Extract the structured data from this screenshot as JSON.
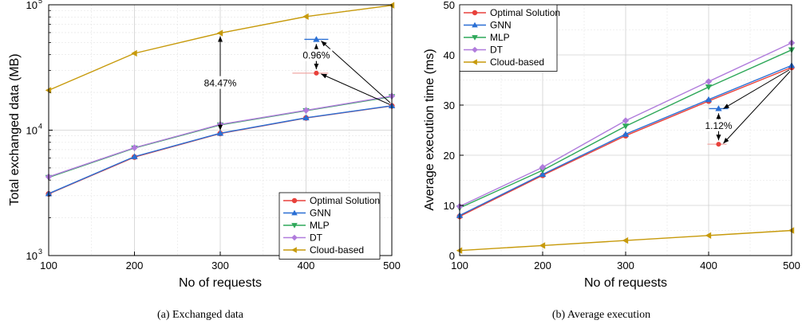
{
  "captions": {
    "a": "(a) Exchanged data",
    "b": "(b) Average execution"
  },
  "chart_data": [
    {
      "type": "line",
      "yscale": "log",
      "xlabel": "No of requests",
      "ylabel": "Total exchanged data (MB)",
      "x": [
        100,
        200,
        300,
        400,
        500
      ],
      "xlim": [
        100,
        500
      ],
      "ylim": [
        1000,
        100000
      ],
      "xticks": [
        "100",
        "200",
        "300",
        "400",
        "500"
      ],
      "ytick_values": [
        1000,
        10000,
        100000
      ],
      "yticks": [
        "10",
        "10",
        "10"
      ],
      "ytick_exponents": [
        "3",
        "4",
        "5"
      ],
      "grid": true,
      "legend_position": "bottom-right",
      "series": [
        {
          "name": "Optimal Solution",
          "color": "#e8413b",
          "marker": "circle",
          "values": [
            3100,
            6100,
            9400,
            12500,
            15600
          ]
        },
        {
          "name": "GNN",
          "color": "#2a6fd4",
          "marker": "triangle-up",
          "values": [
            3120,
            6150,
            9450,
            12550,
            15650
          ]
        },
        {
          "name": "MLP",
          "color": "#2fa85a",
          "marker": "triangle-down",
          "values": [
            4200,
            7200,
            11000,
            14300,
            18500
          ]
        },
        {
          "name": "DT",
          "color": "#b07cdc",
          "marker": "diamond",
          "values": [
            4250,
            7250,
            11100,
            14400,
            18700
          ]
        },
        {
          "name": "Cloud-based",
          "color": "#c79a0b",
          "marker": "triangle-left",
          "values": [
            20800,
            41000,
            59500,
            80500,
            99000
          ]
        }
      ],
      "annotations": [
        {
          "text": "84.47%"
        },
        {
          "text": "0.96%"
        }
      ]
    },
    {
      "type": "line",
      "xlabel": "No of requests",
      "ylabel": "Average execution time (ms)",
      "x": [
        100,
        200,
        300,
        400,
        500
      ],
      "xlim": [
        100,
        500
      ],
      "ylim": [
        0,
        50
      ],
      "xticks": [
        "100",
        "200",
        "300",
        "400",
        "500"
      ],
      "yticks": [
        "0",
        "10",
        "20",
        "30",
        "40",
        "50"
      ],
      "grid": true,
      "legend_position": "top-left",
      "series": [
        {
          "name": "Optimal Solution",
          "color": "#e8413b",
          "marker": "circle",
          "values": [
            7.8,
            16.0,
            23.9,
            30.8,
            37.5
          ]
        },
        {
          "name": "GNN",
          "color": "#2a6fd4",
          "marker": "triangle-up",
          "values": [
            8.0,
            16.2,
            24.2,
            31.1,
            37.9
          ]
        },
        {
          "name": "MLP",
          "color": "#2fa85a",
          "marker": "triangle-down",
          "values": [
            9.5,
            17.0,
            25.8,
            33.6,
            41.0
          ]
        },
        {
          "name": "DT",
          "color": "#b07cdc",
          "marker": "diamond",
          "values": [
            9.8,
            17.6,
            26.9,
            34.7,
            42.4
          ]
        },
        {
          "name": "Cloud-based",
          "color": "#c79a0b",
          "marker": "triangle-left",
          "values": [
            1.0,
            2.0,
            3.0,
            4.0,
            5.0
          ]
        }
      ],
      "annotations": [
        {
          "text": "1.12%"
        }
      ]
    }
  ]
}
